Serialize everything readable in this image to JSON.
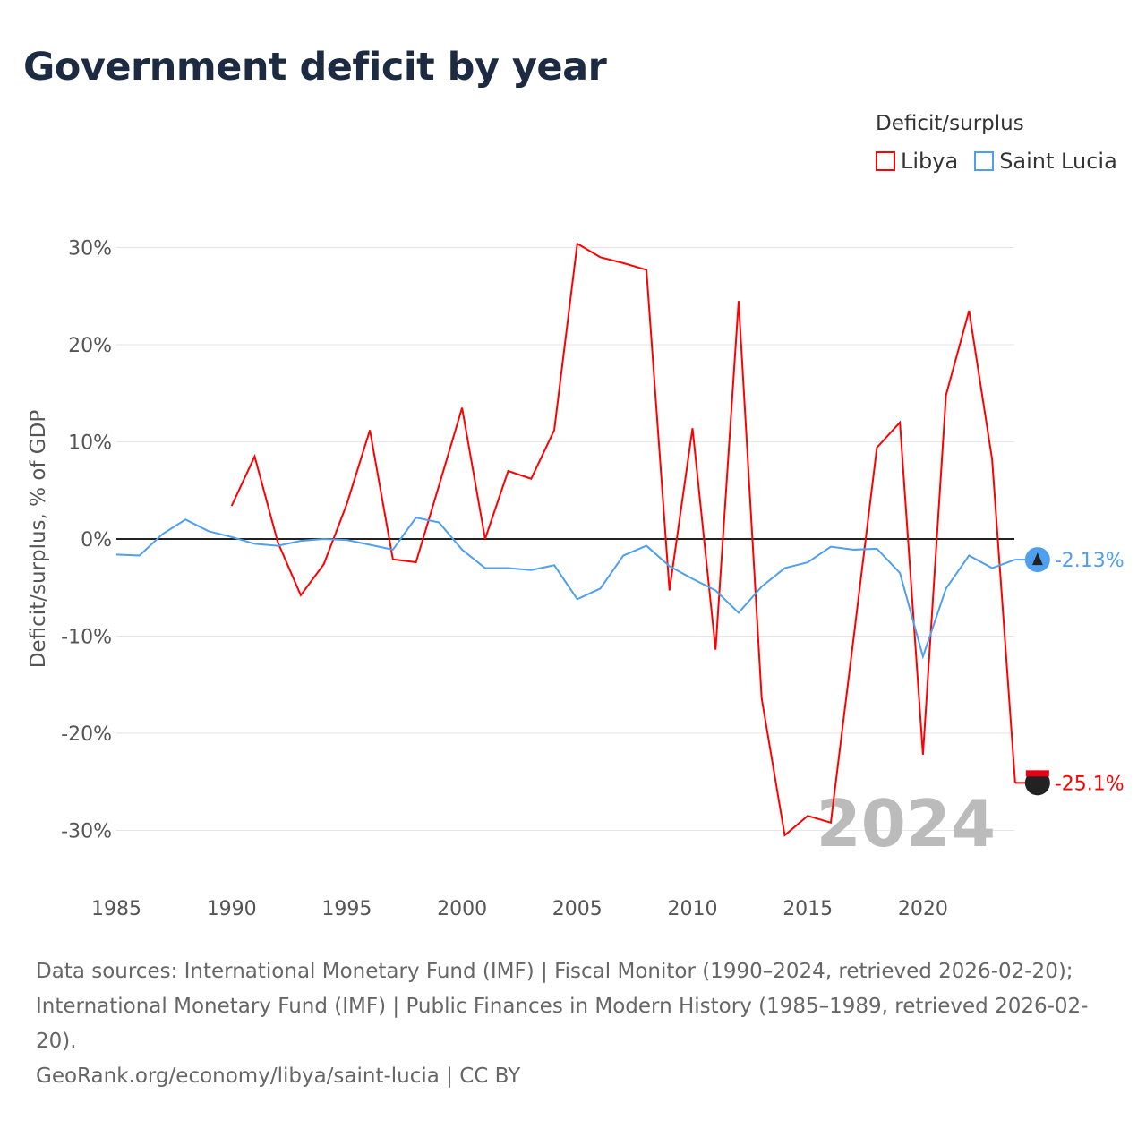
{
  "title": "Government deficit by year",
  "legend": {
    "title": "Deficit/surplus",
    "items": [
      {
        "label": "Libya",
        "color": "#ff0000"
      },
      {
        "label": "Saint Lucia",
        "color": "#4e9ff0"
      }
    ]
  },
  "chart_data": {
    "type": "line",
    "title": "Government deficit by year",
    "xlabel": "",
    "ylabel": "Deficit/surplus, % of GDP",
    "xlim": [
      1985,
      2024
    ],
    "ylim": [
      -35,
      33
    ],
    "xticks": [
      1985,
      1990,
      1995,
      2000,
      2005,
      2010,
      2015,
      2020
    ],
    "yticks": [
      30,
      20,
      10,
      0,
      -10,
      -20,
      -30
    ],
    "ytick_labels": [
      "30%",
      "20%",
      "10%",
      "0%",
      "-10%",
      "-20%",
      "-30%"
    ],
    "grid": true,
    "legend_position": "top-right",
    "year_label": "2024",
    "series": [
      {
        "name": "Libya",
        "color": "#ff0000",
        "end_label": "-25.1%",
        "x": [
          1990,
          1991,
          1992,
          1993,
          1994,
          1995,
          1996,
          1997,
          1998,
          1999,
          2000,
          2001,
          2002,
          2003,
          2004,
          2005,
          2006,
          2007,
          2008,
          2009,
          2010,
          2011,
          2012,
          2013,
          2014,
          2015,
          2016,
          2017,
          2018,
          2019,
          2020,
          2021,
          2022,
          2023,
          2024
        ],
        "values": [
          3.4,
          8.5,
          -0.3,
          -5.8,
          -2.6,
          3.6,
          11.2,
          -2.1,
          -2.4,
          5.5,
          13.5,
          0.0,
          7.0,
          6.2,
          11.2,
          30.4,
          29.0,
          28.4,
          27.7,
          -5.3,
          11.4,
          -11.4,
          24.5,
          -16.4,
          -30.5,
          -28.5,
          -29.2,
          -10.0,
          9.4,
          12.0,
          -22.2,
          14.8,
          23.5,
          8.2,
          -25.1
        ]
      },
      {
        "name": "Saint Lucia",
        "color": "#4e9ff0",
        "end_label": "-2.13%",
        "x": [
          1985,
          1986,
          1987,
          1988,
          1989,
          1990,
          1991,
          1992,
          1993,
          1994,
          1995,
          1996,
          1997,
          1998,
          1999,
          2000,
          2001,
          2002,
          2003,
          2004,
          2005,
          2006,
          2007,
          2008,
          2009,
          2010,
          2011,
          2012,
          2013,
          2014,
          2015,
          2016,
          2017,
          2018,
          2019,
          2020,
          2021,
          2022,
          2023,
          2024
        ],
        "values": [
          -1.6,
          -1.7,
          0.5,
          2.0,
          0.8,
          0.2,
          -0.5,
          -0.7,
          -0.2,
          0.0,
          -0.1,
          -0.6,
          -1.1,
          2.2,
          1.7,
          -1.1,
          -3.0,
          -3.0,
          -3.2,
          -2.7,
          -6.2,
          -5.1,
          -1.7,
          -0.7,
          -2.8,
          -4.1,
          -5.3,
          -7.6,
          -4.9,
          -3.0,
          -2.4,
          -0.8,
          -1.1,
          -1.0,
          -3.5,
          -12.1,
          -5.1,
          -1.7,
          -3.0,
          -2.13
        ]
      }
    ]
  },
  "footer": {
    "sources": "Data sources: International Monetary Fund (IMF) | Fiscal Monitor (1990–2024, retrieved 2026-02-20); International Monetary Fund (IMF) | Public Finances in Modern History (1985–1989, retrieved 2026-02-20).",
    "credit": "GeoRank.org/economy/libya/saint-lucia | CC BY"
  }
}
